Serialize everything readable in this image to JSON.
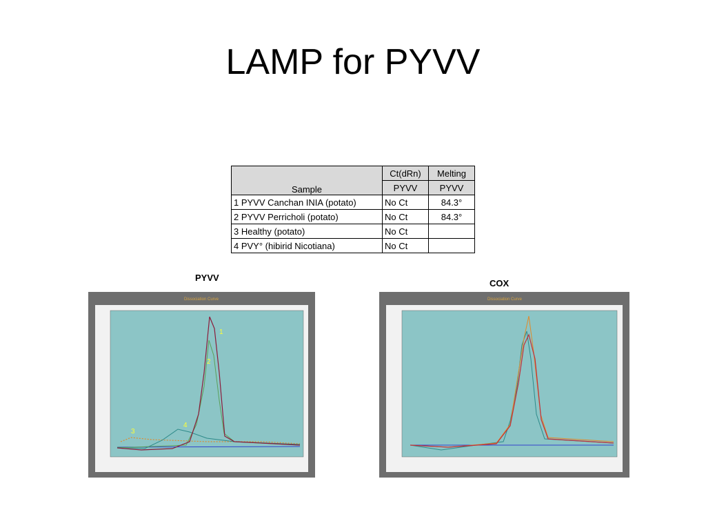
{
  "title": "LAMP for PYVV",
  "table": {
    "header": [
      [
        "Sample",
        "Ct(dRn)",
        "Melting"
      ],
      [
        "PYVV",
        "PYVV"
      ]
    ],
    "rows": [
      [
        "1 PYVV Canchan INIA (potato)",
        "No Ct",
        "84.3°"
      ],
      [
        "2 PYVV Perricholi (potato)",
        "No Ct",
        "84.3°"
      ],
      [
        "3 Healthy (potato)",
        "No Ct",
        ""
      ],
      [
        "4 PVY° (hibirid Nicotiana)",
        "No Ct",
        ""
      ]
    ]
  },
  "figures": [
    {
      "caption": "PYVV",
      "title": "Dissociation Curve",
      "labels": [
        "1",
        "2",
        "3",
        "4"
      ]
    },
    {
      "caption": "COX",
      "title": "Dissociation Curve"
    }
  ]
}
